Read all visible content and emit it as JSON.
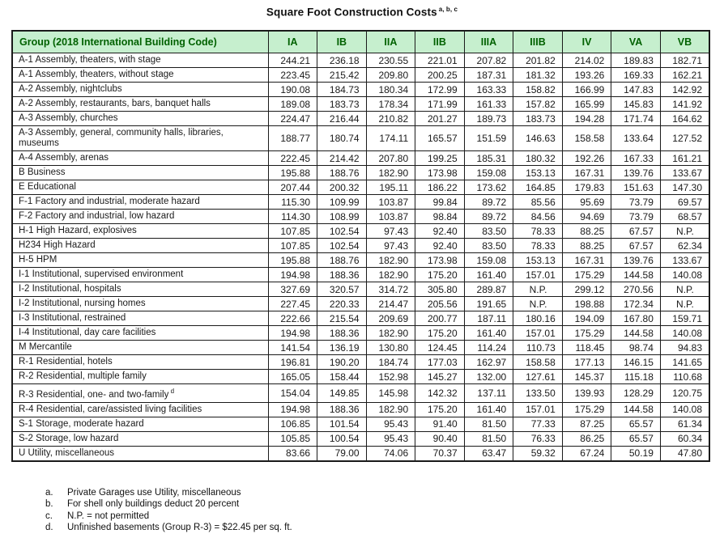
{
  "title": {
    "text": "Square Foot Construction Costs",
    "superscript": "a, b, c"
  },
  "table": {
    "group_header": "Group (2018 International Building Code)",
    "columns": [
      "IA",
      "IB",
      "IIA",
      "IIB",
      "IIIA",
      "IIIB",
      "IV",
      "VA",
      "VB"
    ],
    "not_permitted_token": "N.P.",
    "rows": [
      {
        "group": "A-1 Assembly, theaters, with stage",
        "values": [
          "244.21",
          "236.18",
          "230.55",
          "221.01",
          "207.82",
          "201.82",
          "214.02",
          "189.83",
          "182.71"
        ]
      },
      {
        "group": "A-1 Assembly, theaters, without stage",
        "values": [
          "223.45",
          "215.42",
          "209.80",
          "200.25",
          "187.31",
          "181.32",
          "193.26",
          "169.33",
          "162.21"
        ]
      },
      {
        "group": "A-2 Assembly, nightclubs",
        "values": [
          "190.08",
          "184.73",
          "180.34",
          "172.99",
          "163.33",
          "158.82",
          "166.99",
          "147.83",
          "142.92"
        ]
      },
      {
        "group": "A-2 Assembly, restaurants, bars, banquet halls",
        "values": [
          "189.08",
          "183.73",
          "178.34",
          "171.99",
          "161.33",
          "157.82",
          "165.99",
          "145.83",
          "141.92"
        ]
      },
      {
        "group": "A-3 Assembly, churches",
        "values": [
          "224.47",
          "216.44",
          "210.82",
          "201.27",
          "189.73",
          "183.73",
          "194.28",
          "171.74",
          "164.62"
        ]
      },
      {
        "group": "A-3 Assembly, general, community halls, libraries, museums",
        "values": [
          "188.77",
          "180.74",
          "174.11",
          "165.57",
          "151.59",
          "146.63",
          "158.58",
          "133.64",
          "127.52"
        ]
      },
      {
        "group": "A-4 Assembly, arenas",
        "values": [
          "222.45",
          "214.42",
          "207.80",
          "199.25",
          "185.31",
          "180.32",
          "192.26",
          "167.33",
          "161.21"
        ]
      },
      {
        "group": "B Business",
        "values": [
          "195.88",
          "188.76",
          "182.90",
          "173.98",
          "159.08",
          "153.13",
          "167.31",
          "139.76",
          "133.67"
        ]
      },
      {
        "group": "E Educational",
        "values": [
          "207.44",
          "200.32",
          "195.11",
          "186.22",
          "173.62",
          "164.85",
          "179.83",
          "151.63",
          "147.30"
        ]
      },
      {
        "group": "F-1 Factory and industrial, moderate hazard",
        "values": [
          "115.30",
          "109.99",
          "103.87",
          "99.84",
          "89.72",
          "85.56",
          "95.69",
          "73.79",
          "69.57"
        ]
      },
      {
        "group": "F-2 Factory and industrial, low hazard",
        "values": [
          "114.30",
          "108.99",
          "103.87",
          "98.84",
          "89.72",
          "84.56",
          "94.69",
          "73.79",
          "68.57"
        ]
      },
      {
        "group": "H-1 High Hazard, explosives",
        "values": [
          "107.85",
          "102.54",
          "97.43",
          "92.40",
          "83.50",
          "78.33",
          "88.25",
          "67.57",
          "N.P."
        ]
      },
      {
        "group": "H234 High Hazard",
        "values": [
          "107.85",
          "102.54",
          "97.43",
          "92.40",
          "83.50",
          "78.33",
          "88.25",
          "67.57",
          "62.34"
        ]
      },
      {
        "group": "H-5 HPM",
        "values": [
          "195.88",
          "188.76",
          "182.90",
          "173.98",
          "159.08",
          "153.13",
          "167.31",
          "139.76",
          "133.67"
        ]
      },
      {
        "group": "I-1 Institutional, supervised environment",
        "values": [
          "194.98",
          "188.36",
          "182.90",
          "175.20",
          "161.40",
          "157.01",
          "175.29",
          "144.58",
          "140.08"
        ]
      },
      {
        "group": "I-2 Institutional, hospitals",
        "values": [
          "327.69",
          "320.57",
          "314.72",
          "305.80",
          "289.87",
          "N.P.",
          "299.12",
          "270.56",
          "N.P."
        ]
      },
      {
        "group": "I-2 Institutional, nursing homes",
        "values": [
          "227.45",
          "220.33",
          "214.47",
          "205.56",
          "191.65",
          "N.P.",
          "198.88",
          "172.34",
          "N.P."
        ]
      },
      {
        "group": "I-3 Institutional, restrained",
        "values": [
          "222.66",
          "215.54",
          "209.69",
          "200.77",
          "187.11",
          "180.16",
          "194.09",
          "167.80",
          "159.71"
        ]
      },
      {
        "group": "I-4 Institutional, day care facilities",
        "values": [
          "194.98",
          "188.36",
          "182.90",
          "175.20",
          "161.40",
          "157.01",
          "175.29",
          "144.58",
          "140.08"
        ]
      },
      {
        "group": "M Mercantile",
        "values": [
          "141.54",
          "136.19",
          "130.80",
          "124.45",
          "114.24",
          "110.73",
          "118.45",
          "98.74",
          "94.83"
        ]
      },
      {
        "group": "R-1 Residential, hotels",
        "values": [
          "196.81",
          "190.20",
          "184.74",
          "177.03",
          "162.97",
          "158.58",
          "177.13",
          "146.15",
          "141.65"
        ]
      },
      {
        "group": "R-2 Residential, multiple family",
        "values": [
          "165.05",
          "158.44",
          "152.98",
          "145.27",
          "132.00",
          "127.61",
          "145.37",
          "115.18",
          "110.68"
        ]
      },
      {
        "group": "R-3 Residential, one- and two-family",
        "sup": "d",
        "values": [
          "154.04",
          "149.85",
          "145.98",
          "142.32",
          "137.11",
          "133.50",
          "139.93",
          "128.29",
          "120.75"
        ]
      },
      {
        "group": "R-4 Residential, care/assisted living facilities",
        "values": [
          "194.98",
          "188.36",
          "182.90",
          "175.20",
          "161.40",
          "157.01",
          "175.29",
          "144.58",
          "140.08"
        ]
      },
      {
        "group": "S-1 Storage, moderate hazard",
        "values": [
          "106.85",
          "101.54",
          "95.43",
          "91.40",
          "81.50",
          "77.33",
          "87.25",
          "65.57",
          "61.34"
        ]
      },
      {
        "group": "S-2 Storage, low hazard",
        "values": [
          "105.85",
          "100.54",
          "95.43",
          "90.40",
          "81.50",
          "76.33",
          "86.25",
          "65.57",
          "60.34"
        ]
      },
      {
        "group": "U Utility, miscellaneous",
        "values": [
          "83.66",
          "79.00",
          "74.06",
          "70.37",
          "63.47",
          "59.32",
          "67.24",
          "50.19",
          "47.80"
        ]
      }
    ]
  },
  "footnotes": [
    {
      "marker": "a.",
      "text": "Private Garages use Utility, miscellaneous"
    },
    {
      "marker": "b.",
      "text": "For shell only buildings deduct 20 percent"
    },
    {
      "marker": "c.",
      "text": "N.P. = not permitted"
    },
    {
      "marker": "d.",
      "text": "Unfinished basements (Group R-3) = $22.45 per sq. ft."
    }
  ],
  "colors": {
    "header_bg": "#c6efce",
    "header_text": "#006100",
    "border": "#1a1a1a"
  }
}
